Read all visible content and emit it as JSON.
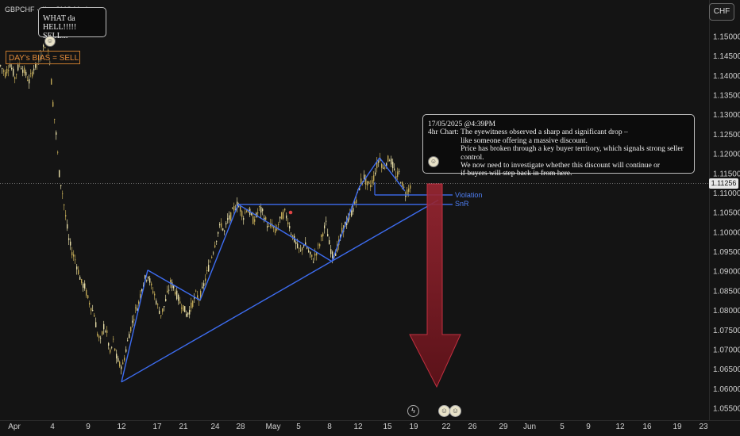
{
  "symbol_text": "GBPCHF · 4h · CMC Markets",
  "currency_button": "CHF",
  "last_price_label": "1.11256",
  "bias_label": "DAY's BIAS = SELL",
  "top_callout": {
    "line1": "WHAT da HELL!!!!!",
    "line2": "SELL..."
  },
  "analysis_callout": {
    "date_line": "17/05/2025 @4:39PM",
    "label": "4hr Chart: ",
    "lines": [
      "The eyewitness observed a sharp and significant drop –",
      "like someone offering a massive discount.",
      "Price has broken through a key buyer territory, which signals strong seller control.",
      "We now need to investigate whether this discount will continue or",
      "if buyers will step back in from here."
    ]
  },
  "annotations": {
    "violation_label": "Violation",
    "snr_label": "SnR"
  },
  "event_icons": [
    "lightning-icon",
    "avatar-icon",
    "avatar-icon"
  ],
  "colors": {
    "background": "#141414",
    "candles": "#d9c77a",
    "trendline": "#3d6cf0",
    "arrow": "#7a1c24",
    "marker": "#e04545"
  },
  "chart_data": {
    "type": "candlestick",
    "x_axis_ticks": [
      "Apr",
      "4",
      "9",
      "12",
      "17",
      "21",
      "24",
      "28",
      "May",
      "5",
      "8",
      "12",
      "15",
      "19",
      "22",
      "26",
      "29",
      "Jun",
      "5",
      "9",
      "12",
      "16",
      "19",
      "23"
    ],
    "y_axis_ticks": [
      "1.15000",
      "1.14500",
      "1.14000",
      "1.13500",
      "1.13000",
      "1.12500",
      "1.12000",
      "1.11500",
      "1.11000",
      "1.10500",
      "1.10000",
      "1.09500",
      "1.09000",
      "1.08500",
      "1.08000",
      "1.07500",
      "1.07000",
      "1.06500",
      "1.06000",
      "1.05500"
    ],
    "ylim": [
      1.0545,
      1.1545
    ],
    "last_price": 1.11256,
    "price_path": [
      [
        0,
        1.1425
      ],
      [
        6,
        1.1405
      ],
      [
        12,
        1.143
      ],
      [
        18,
        1.1395
      ],
      [
        24,
        1.1432
      ],
      [
        30,
        1.141
      ],
      [
        36,
        1.1385
      ],
      [
        42,
        1.142
      ],
      [
        48,
        1.1435
      ],
      [
        54,
        1.147
      ],
      [
        58,
        1.149
      ],
      [
        62,
        1.144
      ],
      [
        66,
        1.133
      ],
      [
        70,
        1.125
      ],
      [
        74,
        1.115
      ],
      [
        78,
        1.11
      ],
      [
        82,
        1.104
      ],
      [
        86,
        1.098
      ],
      [
        90,
        1.095
      ],
      [
        94,
        1.093
      ],
      [
        98,
        1.09
      ],
      [
        102,
        1.087
      ],
      [
        106,
        1.086
      ],
      [
        110,
        1.083
      ],
      [
        114,
        1.081
      ],
      [
        118,
        1.079
      ],
      [
        122,
        1.074
      ],
      [
        126,
        1.072
      ],
      [
        130,
        1.076
      ],
      [
        134,
        1.074
      ],
      [
        138,
        1.069
      ],
      [
        142,
        1.072
      ],
      [
        146,
        1.068
      ],
      [
        150,
        1.066
      ],
      [
        154,
        1.066
      ],
      [
        158,
        1.07
      ],
      [
        162,
        1.074
      ],
      [
        166,
        1.077
      ],
      [
        170,
        1.08
      ],
      [
        174,
        1.082
      ],
      [
        178,
        1.086
      ],
      [
        182,
        1.088
      ],
      [
        186,
        1.089
      ],
      [
        190,
        1.086
      ],
      [
        194,
        1.084
      ],
      [
        198,
        1.081
      ],
      [
        202,
        1.079
      ],
      [
        206,
        1.081
      ],
      [
        210,
        1.084
      ],
      [
        214,
        1.087
      ],
      [
        218,
        1.086
      ],
      [
        222,
        1.084
      ],
      [
        226,
        1.082
      ],
      [
        230,
        1.081
      ],
      [
        234,
        1.079
      ],
      [
        238,
        1.08
      ],
      [
        242,
        1.082
      ],
      [
        246,
        1.084
      ],
      [
        250,
        1.083
      ],
      [
        254,
        1.085
      ],
      [
        258,
        1.088
      ],
      [
        262,
        1.091
      ],
      [
        266,
        1.094
      ],
      [
        270,
        1.097
      ],
      [
        274,
        1.1
      ],
      [
        278,
        1.102
      ],
      [
        282,
        1.1
      ],
      [
        286,
        1.103
      ],
      [
        290,
        1.104
      ],
      [
        294,
        1.106
      ],
      [
        298,
        1.107
      ],
      [
        302,
        1.106
      ],
      [
        306,
        1.104
      ],
      [
        310,
        1.106
      ],
      [
        314,
        1.105
      ],
      [
        318,
        1.103
      ],
      [
        322,
        1.104
      ],
      [
        326,
        1.106
      ],
      [
        330,
        1.105
      ],
      [
        334,
        1.103
      ],
      [
        338,
        1.101
      ],
      [
        342,
        1.102
      ],
      [
        346,
        1.1
      ],
      [
        350,
        1.102
      ],
      [
        354,
        1.104
      ],
      [
        358,
        1.105
      ],
      [
        362,
        1.103
      ],
      [
        366,
        1.1
      ],
      [
        370,
        1.098
      ],
      [
        374,
        1.096
      ],
      [
        378,
        1.095
      ],
      [
        382,
        1.097
      ],
      [
        386,
        1.096
      ],
      [
        390,
        1.094
      ],
      [
        394,
        1.093
      ],
      [
        398,
        1.095
      ],
      [
        402,
        1.097
      ],
      [
        406,
        1.1
      ],
      [
        410,
        1.102
      ],
      [
        414,
        1.097
      ],
      [
        418,
        1.094
      ],
      [
        422,
        1.095
      ],
      [
        426,
        1.097
      ],
      [
        430,
        1.1
      ],
      [
        434,
        1.102
      ],
      [
        438,
        1.103
      ],
      [
        442,
        1.105
      ],
      [
        446,
        1.107
      ],
      [
        450,
        1.11
      ],
      [
        454,
        1.113
      ],
      [
        458,
        1.114
      ],
      [
        462,
        1.112
      ],
      [
        466,
        1.112
      ],
      [
        470,
        1.114
      ],
      [
        474,
        1.117
      ],
      [
        478,
        1.119
      ],
      [
        482,
        1.116
      ],
      [
        486,
        1.118
      ],
      [
        490,
        1.119
      ],
      [
        494,
        1.117
      ],
      [
        498,
        1.114
      ],
      [
        502,
        1.115
      ],
      [
        506,
        1.112
      ],
      [
        510,
        1.11
      ],
      [
        514,
        1.111
      ],
      [
        518,
        1.113
      ]
    ],
    "trendlines": [
      {
        "from": [
          153,
          1.0617
        ],
        "to": [
          552,
          1.1082
        ]
      },
      {
        "from": [
          153,
          1.0617
        ],
        "to": [
          186,
          1.0903
        ]
      },
      {
        "from": [
          186,
          1.0903
        ],
        "to": [
          252,
          1.0826
        ]
      },
      {
        "from": [
          252,
          1.0826
        ],
        "to": [
          300,
          1.1071
        ]
      },
      {
        "from": [
          300,
          1.1071
        ],
        "to": [
          418,
          1.0925
        ]
      },
      {
        "from": [
          418,
          1.0925
        ],
        "to": [
          452,
          1.1113
        ]
      },
      {
        "from": [
          452,
          1.1113
        ],
        "to": [
          478,
          1.119
        ]
      },
      {
        "from": [
          478,
          1.119
        ],
        "to": [
          510,
          1.1105
        ]
      }
    ],
    "levels": [
      {
        "y": 1.1071,
        "x_from": 300,
        "x_to": 570,
        "name": "SnR"
      },
      {
        "y": 1.1095,
        "x_from": 472,
        "x_to": 570,
        "name": "Violation"
      }
    ]
  }
}
